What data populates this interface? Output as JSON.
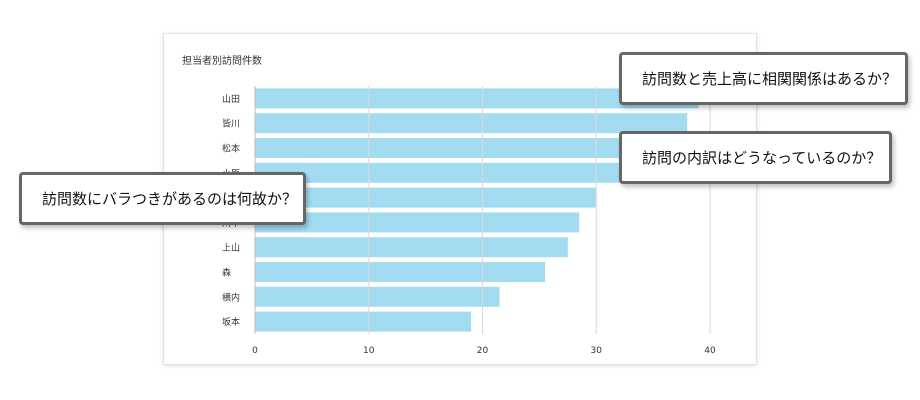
{
  "chart_data": {
    "type": "bar",
    "orientation": "horizontal",
    "title": "担当者別訪問件数",
    "categories": [
      "山田",
      "皆川",
      "松本",
      "小原",
      "",
      "川中",
      "上山",
      "森",
      "横内",
      "坂本"
    ],
    "values": [
      39,
      38,
      35,
      33,
      30,
      28.5,
      27.5,
      25.5,
      21.5,
      19
    ],
    "xlim": [
      0,
      40
    ],
    "xticks": [
      0,
      10,
      20,
      30,
      40
    ],
    "grid": true,
    "bar_color": "#a3dcf1",
    "grid_color": "#d9d9d9"
  },
  "callouts": [
    "訪問数と売上高に相関関係はあるか？",
    "訪問の内訳はどうなっているのか？",
    "訪問数にバラつきがあるのは何故か？"
  ]
}
